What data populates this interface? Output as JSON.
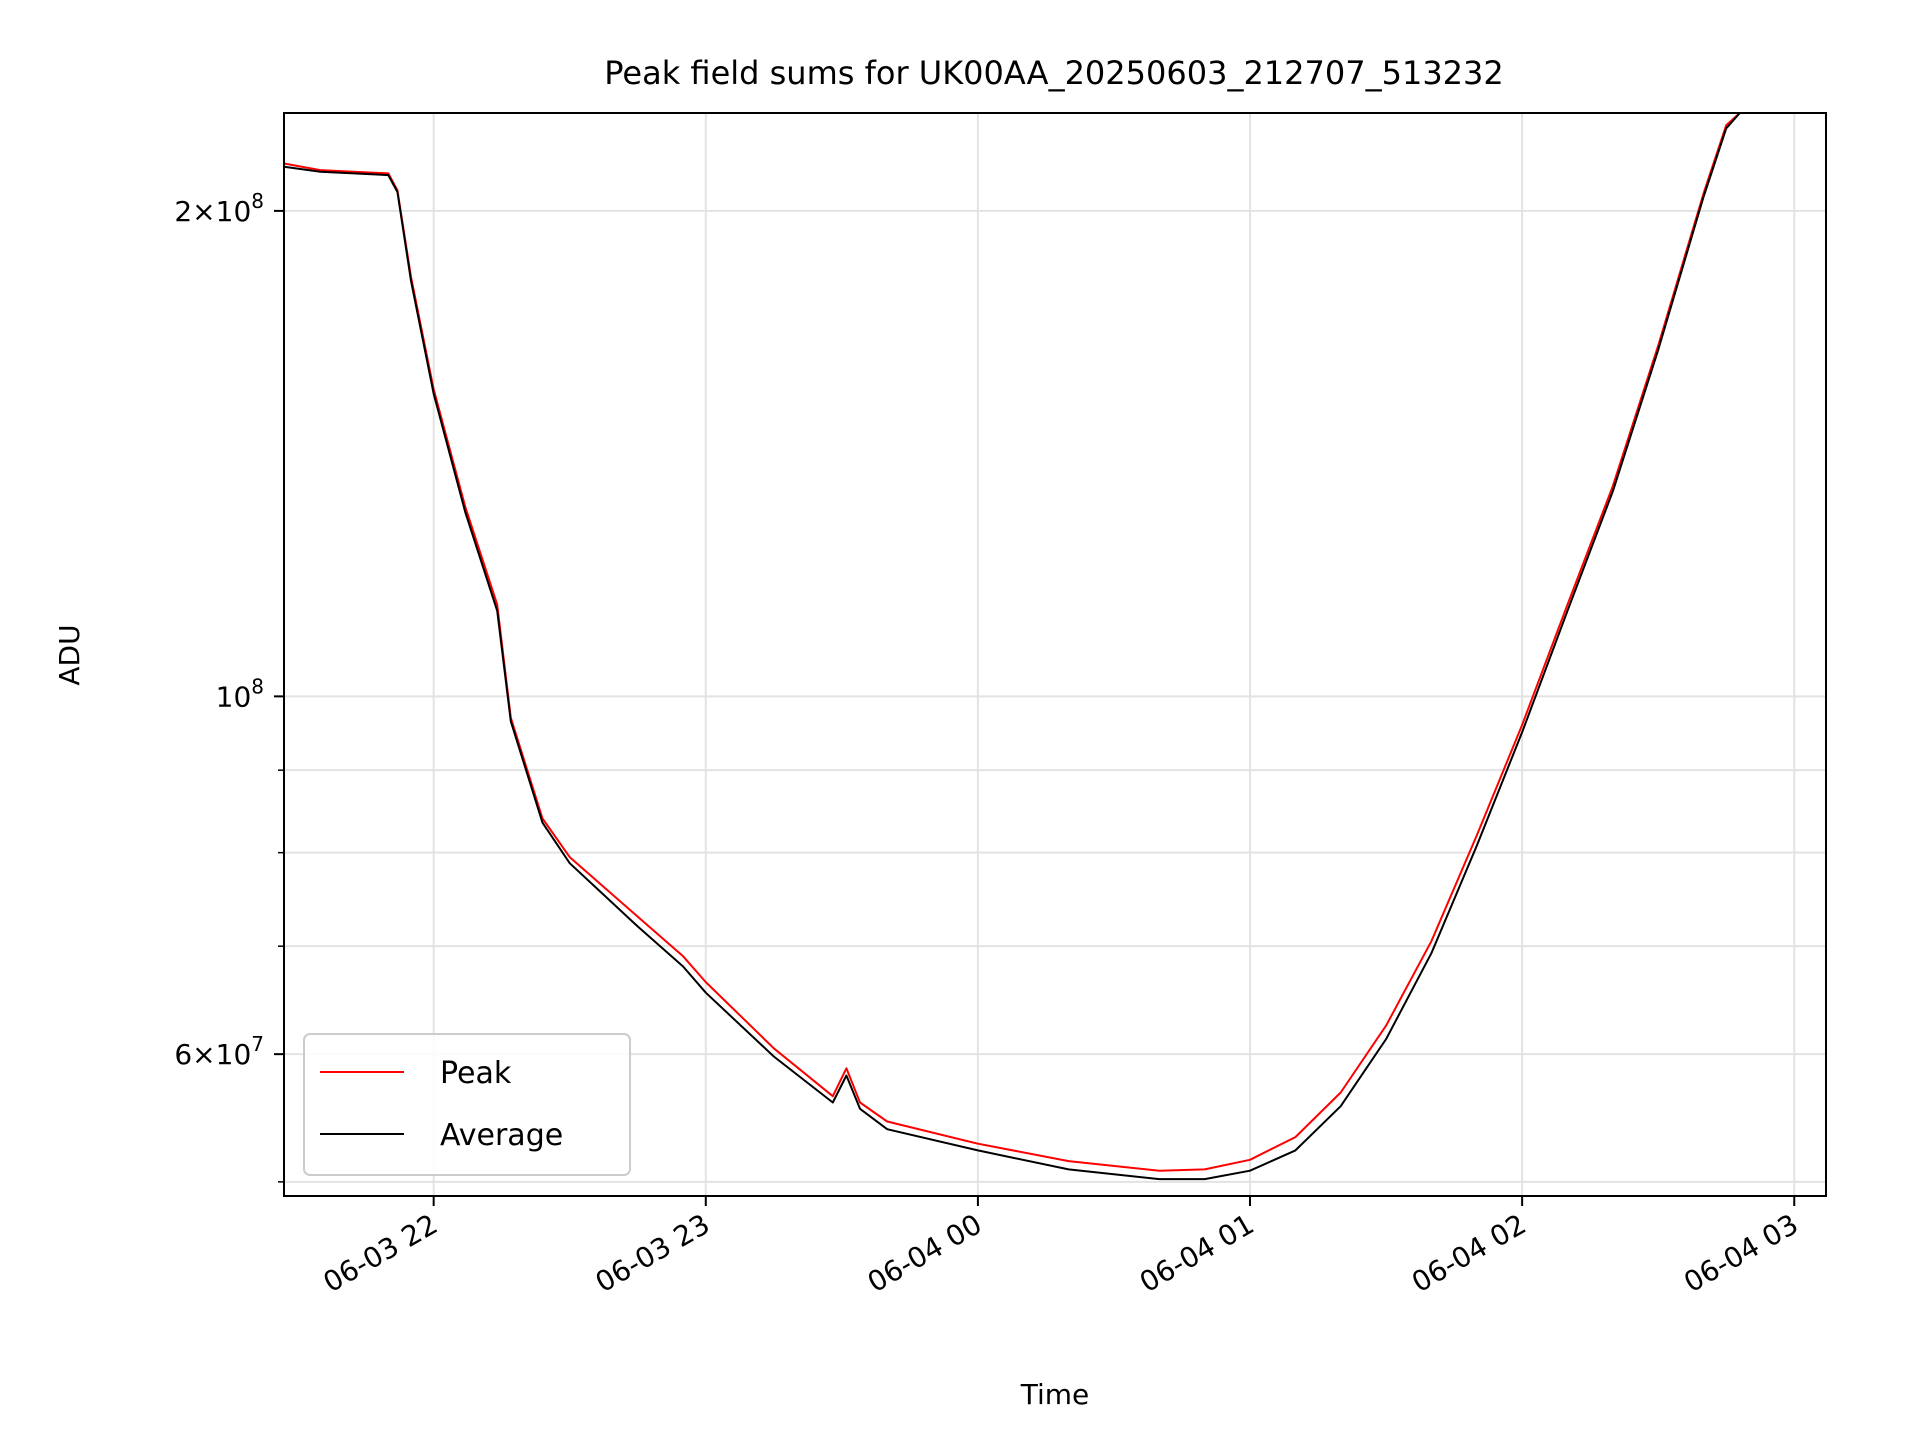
{
  "chart_data": {
    "type": "line",
    "title": "Peak field sums for UK00AA_20250603_212707_513232",
    "xlabel": "Time",
    "ylabel": "ADU",
    "yscale": "log",
    "grid": true,
    "legend_placement": "lower-left",
    "xlim": [
      "2025-06-03 21:27",
      "2025-06-04 03:07"
    ],
    "ylim": [
      49000000,
      230000000
    ],
    "x_ticks": [
      "06-03 22",
      "06-03 23",
      "06-04 00",
      "06-04 01",
      "06-04 02",
      "06-04 03"
    ],
    "y_tick_labels": [
      {
        "value": 200000000,
        "base": "2",
        "exp": "8",
        "label": "2 × 10^8"
      },
      {
        "value": 100000000,
        "base": "",
        "exp": "8",
        "label": "10^8"
      },
      {
        "value": 60000000,
        "base": "6",
        "exp": "7",
        "label": "6 × 10^7"
      }
    ],
    "y_minor_ticks": [
      50000000,
      70000000,
      80000000,
      90000000
    ],
    "series": [
      {
        "name": "Peak",
        "color": "#ff0000",
        "x": [
          "2025-06-03 21:27",
          "2025-06-03 21:35",
          "2025-06-03 21:50",
          "2025-06-03 21:52",
          "2025-06-03 21:55",
          "2025-06-03 22:00",
          "2025-06-03 22:07",
          "2025-06-03 22:14",
          "2025-06-03 22:17",
          "2025-06-03 22:24",
          "2025-06-03 22:30",
          "2025-06-03 22:45",
          "2025-06-03 22:55",
          "2025-06-03 23:00",
          "2025-06-03 23:15",
          "2025-06-03 23:28",
          "2025-06-03 23:31",
          "2025-06-03 23:34",
          "2025-06-03 23:40",
          "2025-06-04 00:00",
          "2025-06-04 00:20",
          "2025-06-04 00:40",
          "2025-06-04 00:50",
          "2025-06-04 01:00",
          "2025-06-04 01:10",
          "2025-06-04 01:20",
          "2025-06-04 01:30",
          "2025-06-04 01:40",
          "2025-06-04 01:50",
          "2025-06-04 02:00",
          "2025-06-04 02:10",
          "2025-06-04 02:20",
          "2025-06-04 02:30",
          "2025-06-04 02:40",
          "2025-06-04 02:45",
          "2025-06-04 02:48"
        ],
        "y": [
          214000000,
          212000000,
          211000000,
          206000000,
          182000000,
          155000000,
          131000000,
          114000000,
          97000000,
          84000000,
          79500000,
          73000000,
          69000000,
          66500000,
          60500000,
          56500000,
          58800000,
          56000000,
          54500000,
          52800000,
          51500000,
          50800000,
          50900000,
          51600000,
          53300000,
          56800000,
          62500000,
          70500000,
          82000000,
          96000000,
          114000000,
          135000000,
          165000000,
          205000000,
          226000000,
          230000000
        ]
      },
      {
        "name": "Average",
        "color": "#000000",
        "x": [
          "2025-06-03 21:27",
          "2025-06-03 21:35",
          "2025-06-03 21:50",
          "2025-06-03 21:52",
          "2025-06-03 21:55",
          "2025-06-03 22:00",
          "2025-06-03 22:07",
          "2025-06-03 22:14",
          "2025-06-03 22:17",
          "2025-06-03 22:24",
          "2025-06-03 22:30",
          "2025-06-03 22:45",
          "2025-06-03 22:55",
          "2025-06-03 23:00",
          "2025-06-03 23:15",
          "2025-06-03 23:28",
          "2025-06-03 23:31",
          "2025-06-03 23:34",
          "2025-06-03 23:40",
          "2025-06-04 00:00",
          "2025-06-04 00:20",
          "2025-06-04 00:40",
          "2025-06-04 00:50",
          "2025-06-04 01:00",
          "2025-06-04 01:10",
          "2025-06-04 01:20",
          "2025-06-04 01:30",
          "2025-06-04 01:40",
          "2025-06-04 01:50",
          "2025-06-04 02:00",
          "2025-06-04 02:10",
          "2025-06-04 02:20",
          "2025-06-04 02:30",
          "2025-06-04 02:40",
          "2025-06-04 02:45",
          "2025-06-04 02:48"
        ],
        "y": [
          213000000,
          211500000,
          210500000,
          205500000,
          181000000,
          154000000,
          130000000,
          113000000,
          96500000,
          83500000,
          78800000,
          72000000,
          68000000,
          65500000,
          59800000,
          56000000,
          58200000,
          55500000,
          53900000,
          52300000,
          50900000,
          50200000,
          50200000,
          50800000,
          52300000,
          55700000,
          61300000,
          69300000,
          80800000,
          95000000,
          113000000,
          134000000,
          164000000,
          204000000,
          225000000,
          230000000
        ]
      }
    ]
  }
}
